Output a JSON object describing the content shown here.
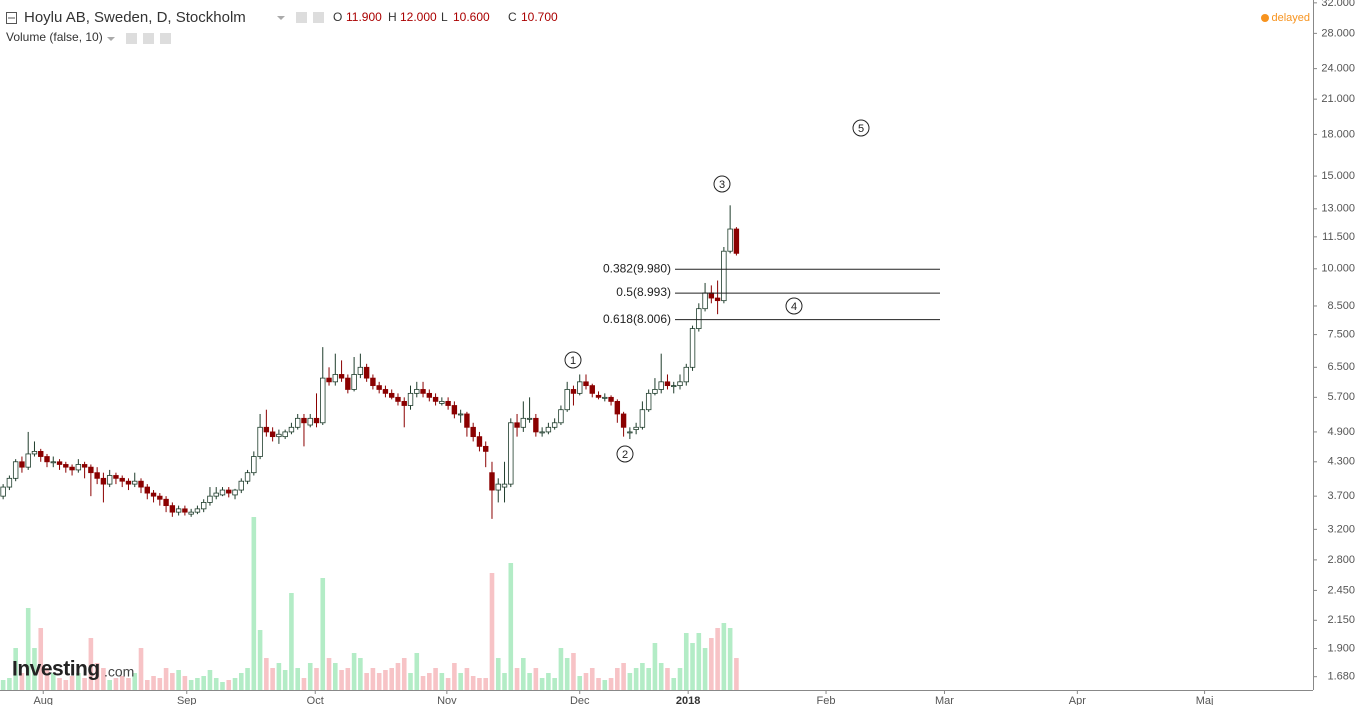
{
  "header": {
    "title": "Hoylu AB, Sweden, D, Stockholm",
    "ohlc": [
      {
        "key": "O",
        "value": "11.900"
      },
      {
        "key": "H",
        "value": "12.000"
      },
      {
        "key": "L",
        "value": "10.600"
      },
      {
        "key": "C",
        "value": "10.700"
      }
    ],
    "volume_label": "Volume (false, 10)",
    "status": "delayed",
    "logo": "Investing",
    "logo_suffix": ".com"
  },
  "chart_data": {
    "type": "candlestick",
    "log_scale": true,
    "up_color": "#ffffff",
    "up_stroke": "#1f3d2c",
    "down_color": "#8b0000",
    "volume_up_color": "#b3ecc6",
    "volume_down_color": "#f7c3c6",
    "ylim": [
      1.585,
      32.4
    ],
    "yticks": [
      {
        "value": 32,
        "label": "32.000"
      },
      {
        "value": 28,
        "label": "28.000"
      },
      {
        "value": 24,
        "label": "24.000"
      },
      {
        "value": 21,
        "label": "21.000"
      },
      {
        "value": 18,
        "label": "18.000"
      },
      {
        "value": 15,
        "label": "15.000"
      },
      {
        "value": 13,
        "label": "13.000"
      },
      {
        "value": 11.5,
        "label": "11.500"
      },
      {
        "value": 10,
        "label": "10.000"
      },
      {
        "value": 8.5,
        "label": "8.500"
      },
      {
        "value": 7.5,
        "label": "7.500"
      },
      {
        "value": 6.5,
        "label": "6.500"
      },
      {
        "value": 5.7,
        "label": "5.700"
      },
      {
        "value": 4.9,
        "label": "4.900"
      },
      {
        "value": 4.3,
        "label": "4.300"
      },
      {
        "value": 3.7,
        "label": "3.700"
      },
      {
        "value": 3.2,
        "label": "3.200"
      },
      {
        "value": 2.8,
        "label": "2.800"
      },
      {
        "value": 2.45,
        "label": "2.450"
      },
      {
        "value": 2.15,
        "label": "2.150"
      },
      {
        "value": 1.9,
        "label": "1.900"
      },
      {
        "value": 1.68,
        "label": "1.680"
      }
    ],
    "xlim": [
      -0.5,
      209
    ],
    "xticks": [
      {
        "value": 6.4,
        "label": "Aug"
      },
      {
        "value": 29.3,
        "label": "Sep"
      },
      {
        "value": 49.8,
        "label": "Oct"
      },
      {
        "value": 70.8,
        "label": "Nov"
      },
      {
        "value": 92,
        "label": "Dec"
      },
      {
        "value": 109.3,
        "label": "2018"
      },
      {
        "value": 131.3,
        "label": "Feb"
      },
      {
        "value": 150.2,
        "label": "Mar"
      },
      {
        "value": 171.4,
        "label": "Apr"
      },
      {
        "value": 191.7,
        "label": "Maj"
      }
    ],
    "candles": [
      [
        3.7,
        3.9,
        3.65,
        3.85
      ],
      [
        3.85,
        4.05,
        3.8,
        4.0
      ],
      [
        4.0,
        4.35,
        3.95,
        4.3
      ],
      [
        4.3,
        4.4,
        4.1,
        4.2
      ],
      [
        4.2,
        4.9,
        4.15,
        4.45
      ],
      [
        4.45,
        4.7,
        4.4,
        4.5
      ],
      [
        4.5,
        4.55,
        4.3,
        4.4
      ],
      [
        4.4,
        4.45,
        4.2,
        4.3
      ],
      [
        4.3,
        4.4,
        4.2,
        4.3
      ],
      [
        4.3,
        4.35,
        4.15,
        4.25
      ],
      [
        4.25,
        4.3,
        4.1,
        4.2
      ],
      [
        4.2,
        4.25,
        4.05,
        4.15
      ],
      [
        4.15,
        4.35,
        4.1,
        4.25
      ],
      [
        4.25,
        4.3,
        4.0,
        4.2
      ],
      [
        4.2,
        4.25,
        3.7,
        4.1
      ],
      [
        4.1,
        4.2,
        3.9,
        4.0
      ],
      [
        4.0,
        4.1,
        3.6,
        3.9
      ],
      [
        3.9,
        4.15,
        3.85,
        4.05
      ],
      [
        4.05,
        4.1,
        3.9,
        4.0
      ],
      [
        4.0,
        4.05,
        3.85,
        3.95
      ],
      [
        3.95,
        4.0,
        3.8,
        3.9
      ],
      [
        3.9,
        4.1,
        3.85,
        3.95
      ],
      [
        3.95,
        4.0,
        3.75,
        3.85
      ],
      [
        3.85,
        3.9,
        3.65,
        3.75
      ],
      [
        3.75,
        3.8,
        3.6,
        3.7
      ],
      [
        3.7,
        3.75,
        3.55,
        3.65
      ],
      [
        3.65,
        3.7,
        3.45,
        3.55
      ],
      [
        3.55,
        3.6,
        3.38,
        3.45
      ],
      [
        3.45,
        3.55,
        3.4,
        3.5
      ],
      [
        3.5,
        3.55,
        3.4,
        3.45
      ],
      [
        3.42,
        3.5,
        3.38,
        3.45
      ],
      [
        3.45,
        3.55,
        3.42,
        3.5
      ],
      [
        3.5,
        3.65,
        3.45,
        3.6
      ],
      [
        3.6,
        3.85,
        3.55,
        3.7
      ],
      [
        3.7,
        3.85,
        3.65,
        3.75
      ],
      [
        3.72,
        3.85,
        3.7,
        3.8
      ],
      [
        3.8,
        3.85,
        3.68,
        3.75
      ],
      [
        3.72,
        3.82,
        3.65,
        3.8
      ],
      [
        3.8,
        4.0,
        3.75,
        3.95
      ],
      [
        3.95,
        4.15,
        3.9,
        4.1
      ],
      [
        4.1,
        4.5,
        4.05,
        4.4
      ],
      [
        4.4,
        5.3,
        4.35,
        5.0
      ],
      [
        5.0,
        5.4,
        4.8,
        4.9
      ],
      [
        4.9,
        5.0,
        4.7,
        4.8
      ],
      [
        4.8,
        4.95,
        4.65,
        4.85
      ],
      [
        4.8,
        4.95,
        4.75,
        4.9
      ],
      [
        4.9,
        5.1,
        4.85,
        5.0
      ],
      [
        5.0,
        5.3,
        4.95,
        5.2
      ],
      [
        5.2,
        5.3,
        4.6,
        5.1
      ],
      [
        5.05,
        5.3,
        5.0,
        5.2
      ],
      [
        5.2,
        5.8,
        5.0,
        5.1
      ],
      [
        5.1,
        7.1,
        5.05,
        6.2
      ],
      [
        6.2,
        6.5,
        6.0,
        6.1
      ],
      [
        6.1,
        6.9,
        6.0,
        6.3
      ],
      [
        6.3,
        6.7,
        6.1,
        6.2
      ],
      [
        6.2,
        6.3,
        5.8,
        5.9
      ],
      [
        5.9,
        6.8,
        5.85,
        6.3
      ],
      [
        6.3,
        6.9,
        6.2,
        6.5
      ],
      [
        6.5,
        6.6,
        6.1,
        6.2
      ],
      [
        6.2,
        6.3,
        5.9,
        6.0
      ],
      [
        6.0,
        6.1,
        5.8,
        5.9
      ],
      [
        5.9,
        6.0,
        5.7,
        5.8
      ],
      [
        5.8,
        5.9,
        5.65,
        5.7
      ],
      [
        5.7,
        5.8,
        5.5,
        5.6
      ],
      [
        5.6,
        5.7,
        5.0,
        5.5
      ],
      [
        5.5,
        6.0,
        5.4,
        5.8
      ],
      [
        5.8,
        6.1,
        5.7,
        5.9
      ],
      [
        5.9,
        6.1,
        5.7,
        5.8
      ],
      [
        5.8,
        5.9,
        5.6,
        5.7
      ],
      [
        5.7,
        5.8,
        5.5,
        5.6
      ],
      [
        5.55,
        5.7,
        5.5,
        5.6
      ],
      [
        5.6,
        5.7,
        5.4,
        5.5
      ],
      [
        5.5,
        5.6,
        5.2,
        5.3
      ],
      [
        5.3,
        5.4,
        5.1,
        5.3
      ],
      [
        5.3,
        5.35,
        4.8,
        5.0
      ],
      [
        5.0,
        5.1,
        4.7,
        4.8
      ],
      [
        4.8,
        4.9,
        4.5,
        4.6
      ],
      [
        4.6,
        4.7,
        4.2,
        4.5
      ],
      [
        4.1,
        4.3,
        3.35,
        3.8
      ],
      [
        3.8,
        4.0,
        3.6,
        3.9
      ],
      [
        3.85,
        4.3,
        3.6,
        3.9
      ],
      [
        3.9,
        5.2,
        3.85,
        5.1
      ],
      [
        5.1,
        5.3,
        4.8,
        5.0
      ],
      [
        5.0,
        5.6,
        4.9,
        5.2
      ],
      [
        5.2,
        5.7,
        5.1,
        5.2
      ],
      [
        5.2,
        5.3,
        4.8,
        4.9
      ],
      [
        4.9,
        5.0,
        4.8,
        4.9
      ],
      [
        4.9,
        5.1,
        4.85,
        5.0
      ],
      [
        5.0,
        5.2,
        4.95,
        5.1
      ],
      [
        5.1,
        5.5,
        5.05,
        5.4
      ],
      [
        5.4,
        6.1,
        5.35,
        5.9
      ],
      [
        5.9,
        6.0,
        5.5,
        5.8
      ],
      [
        5.8,
        6.3,
        5.75,
        6.1
      ],
      [
        6.1,
        6.3,
        5.9,
        6.0
      ],
      [
        6.0,
        6.05,
        5.7,
        5.8
      ],
      [
        5.75,
        5.85,
        5.65,
        5.7
      ],
      [
        5.7,
        5.8,
        5.6,
        5.7
      ],
      [
        5.7,
        5.75,
        5.5,
        5.6
      ],
      [
        5.6,
        5.65,
        5.1,
        5.3
      ],
      [
        5.3,
        5.35,
        4.8,
        5.0
      ],
      [
        4.9,
        5.0,
        4.75,
        4.9
      ],
      [
        4.95,
        5.1,
        4.85,
        5.0
      ],
      [
        5.0,
        5.6,
        4.95,
        5.4
      ],
      [
        5.4,
        5.9,
        5.35,
        5.8
      ],
      [
        5.8,
        6.2,
        5.75,
        5.9
      ],
      [
        5.9,
        6.9,
        5.8,
        6.1
      ],
      [
        6.1,
        6.3,
        5.9,
        6.0
      ],
      [
        6.0,
        6.1,
        5.8,
        6.0
      ],
      [
        6.0,
        6.3,
        5.9,
        6.1
      ],
      [
        6.1,
        6.6,
        6.0,
        6.5
      ],
      [
        6.5,
        7.8,
        6.4,
        7.7
      ],
      [
        7.7,
        8.6,
        7.6,
        8.4
      ],
      [
        8.4,
        9.4,
        8.3,
        9.0
      ],
      [
        9.0,
        9.3,
        8.6,
        8.8
      ],
      [
        8.8,
        9.5,
        8.2,
        8.7
      ],
      [
        8.7,
        11.0,
        8.6,
        10.8
      ],
      [
        10.8,
        13.2,
        10.7,
        11.9
      ],
      [
        11.9,
        12.0,
        10.6,
        10.7
      ]
    ],
    "volume_ylim": [
      0,
      690
    ],
    "volume": [
      8,
      10,
      40,
      15,
      80,
      40,
      60,
      20,
      15,
      10,
      8,
      12,
      15,
      10,
      50,
      25,
      20,
      8,
      10,
      12,
      10,
      15,
      40,
      8,
      12,
      10,
      20,
      15,
      18,
      12,
      8,
      10,
      12,
      18,
      10,
      6,
      8,
      10,
      15,
      20,
      171,
      58,
      30,
      20,
      25,
      18,
      95,
      20,
      10,
      25,
      20,
      110,
      30,
      25,
      18,
      20,
      35,
      30,
      15,
      20,
      15,
      18,
      20,
      25,
      30,
      15,
      35,
      12,
      15,
      20,
      15,
      10,
      25,
      15,
      20,
      12,
      10,
      10,
      115,
      30,
      15,
      125,
      20,
      30,
      15,
      20,
      10,
      15,
      10,
      40,
      30,
      35,
      12,
      15,
      20,
      10,
      8,
      10,
      20,
      25,
      15,
      20,
      25,
      20,
      45,
      25,
      20,
      10,
      20,
      55,
      45,
      55,
      40,
      50,
      60,
      65,
      60,
      30
    ],
    "fib_levels": [
      {
        "label": "0.382(9.980)",
        "value": 9.98
      },
      {
        "label": "0.5(8.993)",
        "value": 8.993
      },
      {
        "label": "0.618(8.006)",
        "value": 8.006
      }
    ],
    "wave_labels": [
      "1",
      "2",
      "3",
      "4",
      "5"
    ]
  }
}
